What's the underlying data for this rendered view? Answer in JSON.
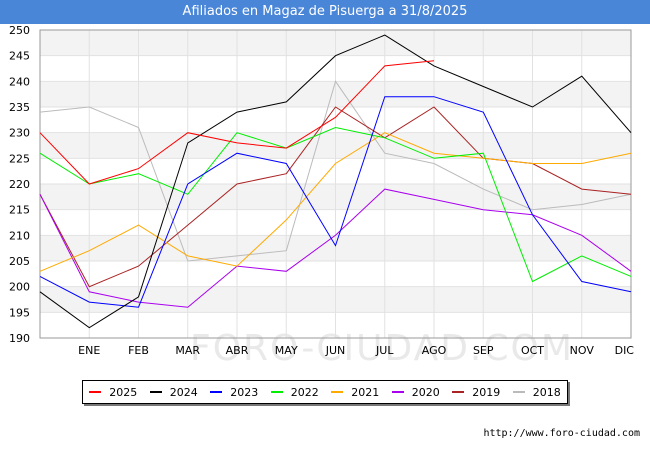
{
  "header": {
    "title": "Afiliados en Magaz de Pisuerga a 31/8/2025"
  },
  "source": "http://www.foro-ciudad.com",
  "watermark": "FORO-CIUDAD.COM",
  "chart_data": {
    "type": "line",
    "title": "Afiliados en Magaz de Pisuerga a 31/8/2025",
    "xlabel": "",
    "ylabel": "",
    "categories": [
      "",
      "ENE",
      "FEB",
      "MAR",
      "ABR",
      "MAY",
      "JUN",
      "JUL",
      "AGO",
      "SEP",
      "OCT",
      "NOV",
      "DIC"
    ],
    "ylim": [
      190,
      250
    ],
    "yticks": [
      190,
      195,
      200,
      205,
      210,
      215,
      220,
      225,
      230,
      235,
      240,
      245,
      250
    ],
    "grid": true,
    "legend_position": "bottom",
    "series": [
      {
        "name": "2025",
        "color": "#ff0000",
        "values": [
          230,
          220,
          223,
          230,
          228,
          227,
          233,
          243,
          244,
          null,
          null,
          null,
          null
        ]
      },
      {
        "name": "2024",
        "color": "#000000",
        "values": [
          199,
          192,
          198,
          228,
          234,
          236,
          245,
          249,
          243,
          239,
          235,
          241,
          230
        ]
      },
      {
        "name": "2023",
        "color": "#0000ff",
        "values": [
          202,
          197,
          196,
          220,
          226,
          224,
          208,
          237,
          237,
          234,
          214,
          201,
          199
        ]
      },
      {
        "name": "2022",
        "color": "#00ee00",
        "values": [
          226,
          220,
          222,
          218,
          230,
          227,
          231,
          229,
          225,
          226,
          201,
          206,
          202
        ]
      },
      {
        "name": "2021",
        "color": "#ffaa00",
        "values": [
          203,
          207,
          212,
          206,
          204,
          213,
          224,
          230,
          226,
          225,
          224,
          224,
          226
        ]
      },
      {
        "name": "2020",
        "color": "#aa00ee",
        "values": [
          218,
          199,
          197,
          196,
          204,
          203,
          210,
          219,
          217,
          215,
          214,
          210,
          203
        ]
      },
      {
        "name": "2019",
        "color": "#aa2222",
        "values": [
          218,
          200,
          204,
          212,
          220,
          222,
          235,
          229,
          235,
          225,
          224,
          219,
          218
        ]
      },
      {
        "name": "2018",
        "color": "#bbbbbb",
        "values": [
          234,
          235,
          231,
          205,
          206,
          207,
          240,
          226,
          224,
          219,
          215,
          216,
          218
        ]
      }
    ]
  }
}
